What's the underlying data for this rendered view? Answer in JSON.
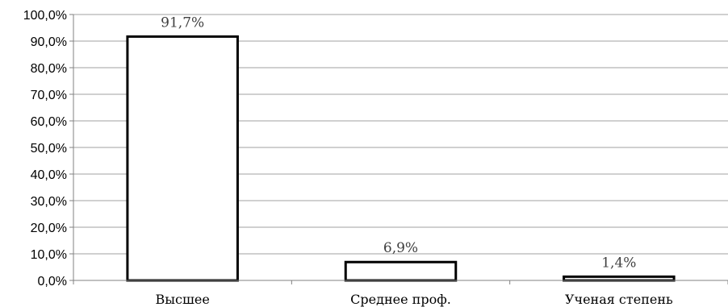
{
  "chart_data": {
    "type": "bar",
    "title": "",
    "xlabel": "",
    "ylabel": "",
    "categories": [
      "Высшее",
      "Среднее проф.",
      "Ученая степень"
    ],
    "values": [
      91.7,
      6.9,
      1.4
    ],
    "data_labels": [
      "91,7%",
      "6,9%",
      "1,4%"
    ],
    "ylim": [
      0,
      100
    ],
    "y_ticks": [
      0,
      10,
      20,
      30,
      40,
      50,
      60,
      70,
      80,
      90,
      100
    ],
    "y_tick_labels": [
      "0,0%",
      "10,0%",
      "20,0%",
      "30,0%",
      "40,0%",
      "50,0%",
      "60,0%",
      "70,0%",
      "80,0%",
      "90,0%",
      "100,0%"
    ],
    "grid": true,
    "legend": "none",
    "colors": {
      "bar_fill": "#ffffff",
      "bar_stroke": "#000000",
      "grid": "#a0a0a0",
      "data_label": "#404040"
    }
  }
}
